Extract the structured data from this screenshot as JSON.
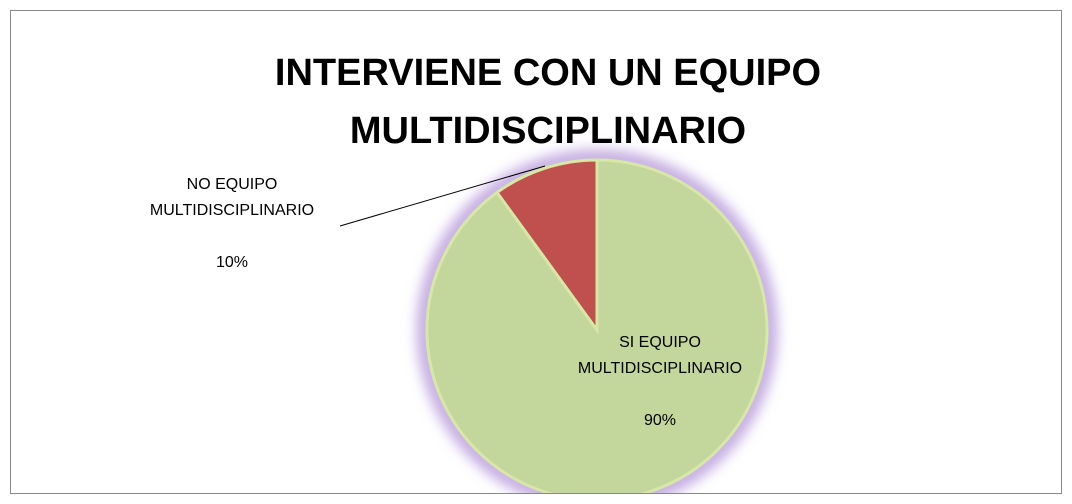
{
  "chart_data": {
    "type": "pie",
    "title": "INTERVIENE CON UN EQUIPO MULTIDISCIPLINARIO",
    "categories": [
      "SI EQUIPO MULTIDISCIPLINARIO",
      "NO EQUIPO MULTIDISCIPLINARIO"
    ],
    "values": [
      90,
      10
    ],
    "value_labels": [
      "90%",
      "10%"
    ],
    "colors": [
      "#c3d69b",
      "#c0504d"
    ]
  }
}
